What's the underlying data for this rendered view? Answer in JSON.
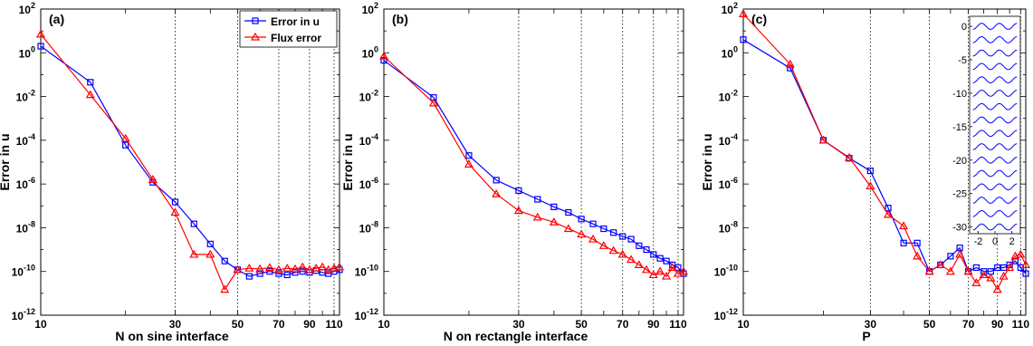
{
  "chart_data": [
    {
      "type": "line",
      "panel_label": "(a)",
      "xlabel": "N  on sine interface",
      "ylabel": "Error in u",
      "xscale": "log",
      "yscale": "log",
      "xlim": [
        10,
        115
      ],
      "ylim": [
        1e-12,
        100
      ],
      "xticks": [
        10,
        30,
        50,
        70,
        90,
        110
      ],
      "yticks": [
        -12,
        -10,
        -8,
        -6,
        -4,
        -2,
        0,
        2
      ],
      "grid": "dotted vertical lines at 30, 50, 70, 90, 110",
      "legend": {
        "placement": "top-right",
        "entries": [
          "Error in u",
          "Flux error"
        ]
      },
      "series": [
        {
          "name": "Error in u",
          "color": "#0000ff",
          "marker": "square",
          "x": [
            10,
            15,
            20,
            25,
            30,
            35,
            40,
            45,
            50,
            55,
            60,
            65,
            70,
            75,
            80,
            85,
            90,
            95,
            100,
            105,
            110,
            115
          ],
          "y": [
            2,
            0.045,
            6e-05,
            1.2e-06,
            1.5e-07,
            1.5e-08,
            1.8e-09,
            3e-10,
            1.2e-10,
            6e-11,
            8e-11,
            1e-10,
            8e-11,
            7e-11,
            9e-11,
            1e-10,
            9e-11,
            1.1e-10,
            9e-11,
            8e-11,
            1e-10,
            1.2e-10
          ]
        },
        {
          "name": "Flux error",
          "color": "#ff0000",
          "marker": "triangle",
          "x": [
            10,
            15,
            20,
            25,
            30,
            35,
            40,
            45,
            50,
            55,
            60,
            65,
            70,
            75,
            80,
            85,
            90,
            95,
            100,
            105,
            110,
            115
          ],
          "y": [
            7,
            0.012,
            0.00012,
            1.6e-06,
            5e-08,
            6e-10,
            6e-10,
            1.5e-11,
            1.2e-10,
            1.4e-10,
            1.3e-10,
            1.5e-10,
            1.2e-10,
            1.4e-10,
            1.3e-10,
            1.6e-10,
            1.2e-10,
            1.4e-10,
            1.6e-10,
            1.2e-10,
            1.4e-10,
            1.6e-10
          ]
        }
      ]
    },
    {
      "type": "line",
      "panel_label": "(b)",
      "xlabel": "N  on rectangle interface",
      "ylabel": "Error in u",
      "xscale": "log",
      "yscale": "log",
      "xlim": [
        10,
        115
      ],
      "ylim": [
        1e-12,
        100
      ],
      "xticks": [
        10,
        30,
        50,
        70,
        90,
        110
      ],
      "yticks": [
        -12,
        -10,
        -8,
        -6,
        -4,
        -2,
        0,
        2
      ],
      "grid": "dotted vertical lines at 30, 50, 70, 90, 110",
      "series": [
        {
          "name": "Error in u",
          "color": "#0000ff",
          "marker": "square",
          "x": [
            10,
            15,
            20,
            25,
            30,
            35,
            40,
            45,
            50,
            55,
            60,
            65,
            70,
            75,
            80,
            85,
            90,
            95,
            100,
            105,
            110,
            115
          ],
          "y": [
            0.45,
            0.009,
            2e-05,
            1.5e-06,
            5e-07,
            2e-07,
            9e-08,
            5e-08,
            2.5e-08,
            1.5e-08,
            9e-09,
            6e-09,
            4e-09,
            3e-09,
            1.5e-09,
            1e-09,
            6e-10,
            4e-10,
            3e-10,
            2e-10,
            1.5e-10,
            8e-11
          ]
        },
        {
          "name": "Flux error",
          "color": "#ff0000",
          "marker": "triangle",
          "x": [
            10,
            15,
            20,
            25,
            30,
            35,
            40,
            45,
            50,
            55,
            60,
            65,
            70,
            75,
            80,
            85,
            90,
            95,
            100,
            105,
            110,
            115
          ],
          "y": [
            0.7,
            0.005,
            8e-06,
            3.5e-07,
            6e-08,
            3e-08,
            1.8e-08,
            9e-09,
            5e-09,
            3e-09,
            1.5e-09,
            9e-10,
            6e-10,
            3.5e-10,
            2e-10,
            1.2e-10,
            7e-11,
            1e-10,
            6e-11,
            1.5e-10,
            8e-11,
            1e-10
          ]
        }
      ]
    },
    {
      "type": "line",
      "panel_label": "(c)",
      "xlabel": "P",
      "ylabel": "Error in u",
      "xscale": "log",
      "yscale": "log",
      "xlim": [
        10,
        115
      ],
      "ylim": [
        1e-12,
        100
      ],
      "xticks": [
        10,
        30,
        50,
        70,
        90,
        110
      ],
      "yticks": [
        -12,
        -10,
        -8,
        -6,
        -4,
        -2,
        0,
        2
      ],
      "grid": "dotted vertical lines at 30, 50, 70, 90, 110",
      "series": [
        {
          "name": "Error in u",
          "color": "#0000ff",
          "marker": "square",
          "x": [
            10,
            15,
            20,
            25,
            30,
            35,
            40,
            45,
            50,
            55,
            60,
            65,
            70,
            75,
            80,
            85,
            90,
            95,
            100,
            105,
            110,
            115
          ],
          "y": [
            4,
            0.2,
            0.0001,
            1.5e-05,
            4e-06,
            8e-08,
            2e-09,
            2e-09,
            1e-10,
            2e-10,
            5e-10,
            1.2e-09,
            1e-10,
            1.5e-10,
            1e-10,
            1e-10,
            1.5e-10,
            1.5e-10,
            2e-10,
            3e-10,
            1.5e-10,
            8e-11
          ]
        },
        {
          "name": "Flux error",
          "color": "#ff0000",
          "marker": "triangle",
          "x": [
            10,
            15,
            20,
            25,
            30,
            35,
            40,
            45,
            50,
            55,
            60,
            65,
            70,
            75,
            80,
            85,
            90,
            95,
            100,
            105,
            110,
            115
          ],
          "y": [
            60,
            0.3,
            0.0001,
            1.6e-05,
            8e-07,
            4e-08,
            1.2e-08,
            5e-10,
            1e-10,
            2e-10,
            1e-10,
            6e-10,
            1e-10,
            3e-11,
            7e-11,
            5e-11,
            1.5e-11,
            6e-11,
            1.5e-10,
            5e-10,
            6e-10,
            2e-10
          ]
        }
      ],
      "inset": {
        "type": "line",
        "description_units": "interface curves",
        "xticks": [
          -2,
          0,
          2
        ],
        "yticks": [
          0,
          -5,
          -10,
          -15,
          -20,
          -25,
          -30
        ],
        "xlim": [
          -3,
          3
        ],
        "ylim": [
          -31,
          1.5
        ],
        "curve_color": "#0000ff",
        "curve_count": 16,
        "curve_spacing": 2
      }
    }
  ]
}
